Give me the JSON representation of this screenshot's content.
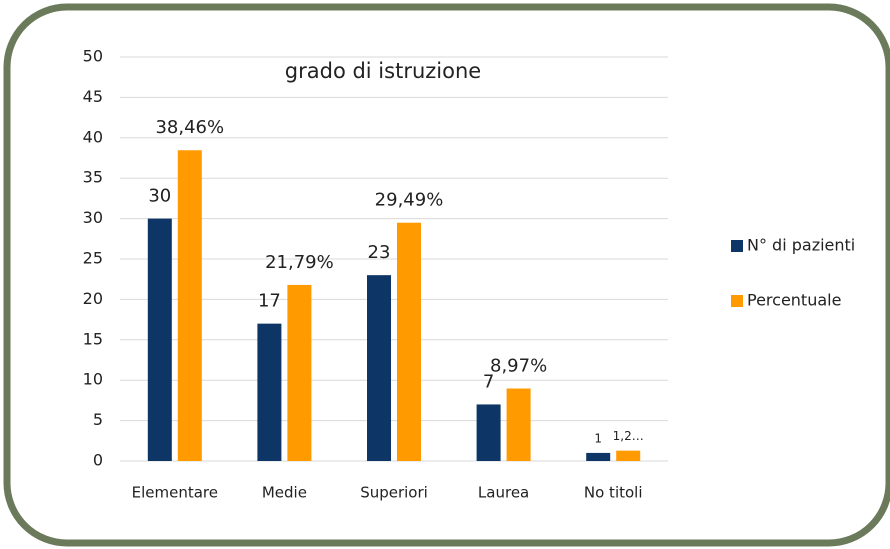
{
  "chart_data": {
    "type": "bar",
    "title": "grado di istruzione",
    "categories": [
      "Elementare",
      "Medie",
      "Superiori",
      "Laurea",
      "No titoli"
    ],
    "series": [
      {
        "name": "N° di pazienti",
        "color": "#0d3566",
        "values": [
          30,
          17,
          23,
          7,
          1
        ]
      },
      {
        "name": "Percentuale",
        "color": "#ff9a00",
        "values": [
          38.46,
          21.79,
          29.49,
          8.97,
          1.28
        ],
        "value_labels": [
          "38,46%",
          "21,79%",
          "29,49%",
          "8,97%",
          "1,2…"
        ]
      }
    ],
    "ylim": [
      0,
      50
    ],
    "yticks": [
      0,
      5,
      10,
      15,
      20,
      25,
      30,
      35,
      40,
      45,
      50
    ],
    "grid": true,
    "legend": "right"
  }
}
